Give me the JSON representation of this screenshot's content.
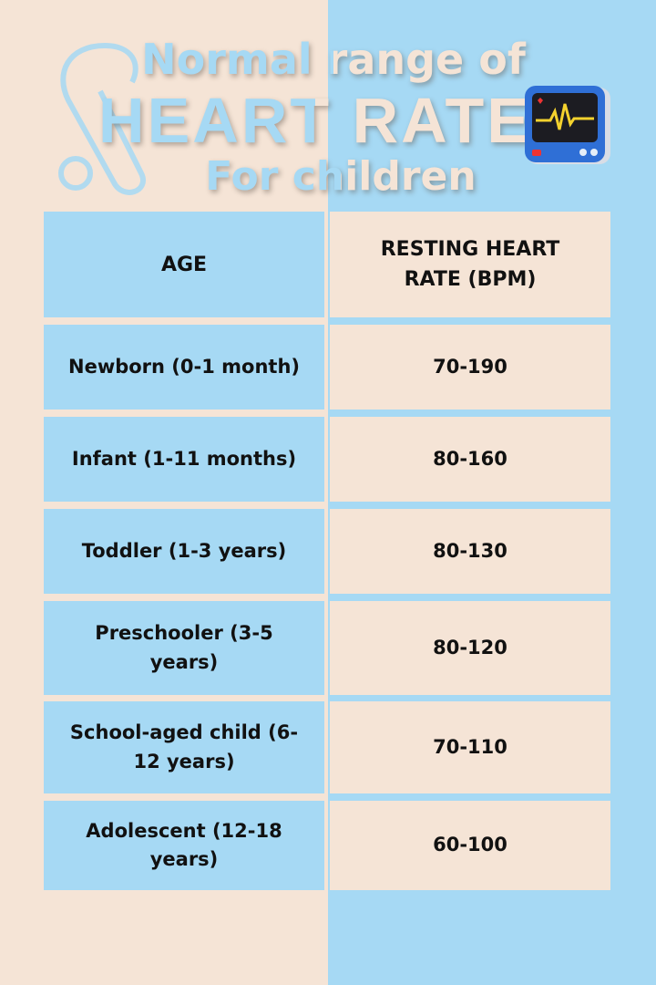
{
  "title": {
    "line1": "Normal range of",
    "line2": "HEART RATE",
    "line3": "For children"
  },
  "colors": {
    "beige": "#f5e4d6",
    "blue": "#a6d9f4",
    "text": "#111111"
  },
  "icons": [
    "stethoscope-icon",
    "heart-monitor-icon"
  ],
  "table": {
    "headers": [
      "AGE",
      "RESTING HEART RATE (BPM)"
    ],
    "rows": [
      {
        "age": "Newborn (0-1 month)",
        "bpm": "70-190"
      },
      {
        "age": "Infant (1-11 months)",
        "bpm": "80-160"
      },
      {
        "age": "Toddler (1-3 years)",
        "bpm": "80-130"
      },
      {
        "age": "Preschooler (3-5 years)",
        "bpm": "80-120"
      },
      {
        "age": "School-aged child (6-12 years)",
        "bpm": "70-110"
      },
      {
        "age": "Adolescent (12-18 years)",
        "bpm": "60-100"
      }
    ]
  }
}
